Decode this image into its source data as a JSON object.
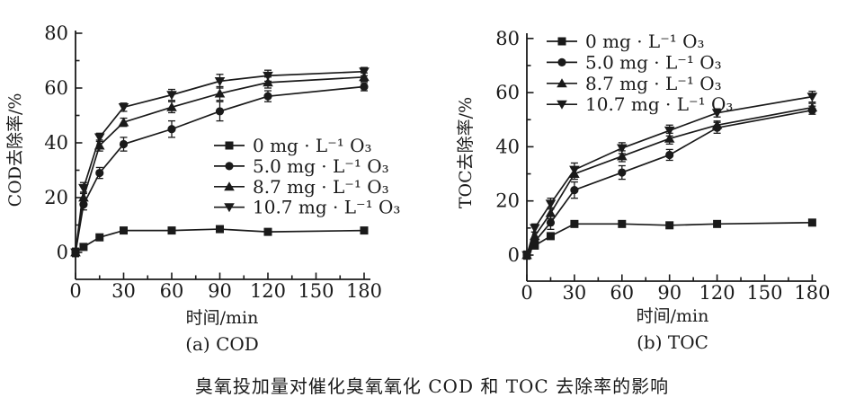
{
  "figure": {
    "caption": "臭氧投加量对催化臭氧氧化 COD 和 TOC 去除率的影响",
    "ink_color": "#1a1a1a",
    "background_color": "#ffffff"
  },
  "chart_data": [
    {
      "id": "cod",
      "type": "line",
      "subtitle": "(a) COD",
      "xlabel": "时间/min",
      "ylabel": "COD去除率/%",
      "xlim": [
        0,
        184
      ],
      "ylim": [
        -10,
        80
      ],
      "xticks": [
        0,
        30,
        60,
        90,
        120,
        150,
        180
      ],
      "yticks": [
        0,
        20,
        40,
        60,
        80
      ],
      "x_minor_ticks": [
        15,
        45,
        75,
        105,
        135,
        165
      ],
      "y_minor_ticks": [
        10,
        30,
        50,
        70
      ],
      "grid": false,
      "legend_position": "center-right-inside",
      "x": [
        0,
        5,
        15,
        30,
        60,
        90,
        120,
        180
      ],
      "series": [
        {
          "name": "0 mg · L⁻¹ O₃",
          "marker": "square",
          "values": [
            0,
            2,
            5.5,
            8,
            8,
            8.5,
            7.5,
            8
          ],
          "errors": [
            0.8,
            0.8,
            0.8,
            0.8,
            0.8,
            0.8,
            0.8,
            0.8
          ]
        },
        {
          "name": "5.0 mg · L⁻¹ O₃",
          "marker": "circle",
          "values": [
            0,
            17.5,
            29,
            39.5,
            45,
            51.5,
            57,
            60.5
          ],
          "errors": [
            1.5,
            2,
            2,
            2.5,
            3,
            3.5,
            2,
            1.5
          ]
        },
        {
          "name": "8.7 mg · L⁻¹ O₃",
          "marker": "triangle-up",
          "values": [
            0,
            20,
            39,
            47.5,
            53,
            58,
            62,
            64
          ],
          "errors": [
            1.5,
            2,
            2,
            1.5,
            2,
            2.5,
            2,
            1.5
          ]
        },
        {
          "name": "10.7 mg · L⁻¹ O₃",
          "marker": "triangle-down",
          "values": [
            0,
            23.5,
            42,
            53,
            57.5,
            62.5,
            64.5,
            66
          ],
          "errors": [
            1.5,
            2,
            1.5,
            1.5,
            2,
            2.5,
            2,
            1.5
          ]
        }
      ]
    },
    {
      "id": "toc",
      "type": "line",
      "subtitle": "(b) TOC",
      "xlabel": "时间/min",
      "ylabel": "TOC去除率/%",
      "xlim": [
        0,
        184
      ],
      "ylim": [
        -10,
        80
      ],
      "xticks": [
        0,
        30,
        60,
        90,
        120,
        150,
        180
      ],
      "yticks": [
        0,
        20,
        40,
        60,
        80
      ],
      "x_minor_ticks": [
        15,
        45,
        75,
        105,
        135,
        165
      ],
      "y_minor_ticks": [
        10,
        30,
        50,
        70
      ],
      "grid": false,
      "legend_position": "top-left-inside",
      "x": [
        0,
        5,
        15,
        30,
        60,
        90,
        120,
        180
      ],
      "series": [
        {
          "name": "0 mg · L⁻¹ O₃",
          "marker": "square",
          "values": [
            0,
            3.5,
            7,
            11.5,
            11.5,
            11,
            11.5,
            12
          ],
          "errors": [
            0.8,
            0.8,
            0.8,
            0.8,
            0.8,
            0.8,
            0.8,
            0.8
          ]
        },
        {
          "name": "5.0 mg · L⁻¹ O₃",
          "marker": "circle",
          "values": [
            0,
            5,
            12,
            24,
            30.5,
            37,
            47,
            53.5
          ],
          "errors": [
            1,
            1.5,
            2.5,
            3,
            2.5,
            2,
            2,
            1.5
          ]
        },
        {
          "name": "8.7 mg · L⁻¹ O₃",
          "marker": "triangle-up",
          "values": [
            0,
            7,
            15.5,
            30,
            36.5,
            43,
            48,
            54.5
          ],
          "errors": [
            1,
            1.5,
            2,
            2,
            2,
            2,
            1.5,
            1.5
          ]
        },
        {
          "name": "10.7 mg · L⁻¹ O₃",
          "marker": "triangle-down",
          "values": [
            0,
            10,
            19,
            31.5,
            39.5,
            46,
            52.5,
            58.5
          ],
          "errors": [
            1.5,
            1.5,
            2,
            2.5,
            2,
            2,
            1.5,
            2
          ]
        }
      ]
    }
  ]
}
